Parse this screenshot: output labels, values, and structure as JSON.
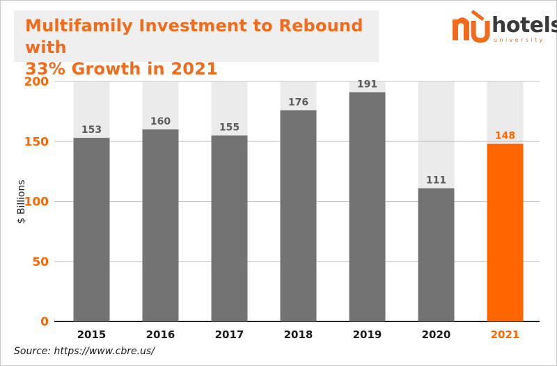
{
  "title": {
    "line1": "Multifamily Investment to Rebound with",
    "line2": "33% Growth in 2021"
  },
  "logo": {
    "word": "hotels",
    "sub": "university"
  },
  "source": "Source: https://www.cbre.us/",
  "colors": {
    "accent": "#FF6600",
    "bar": "#737373",
    "background_column": "#EBEBEB",
    "axis_label": "#FF6600"
  },
  "chart_data": {
    "type": "bar",
    "categories": [
      "2015",
      "2016",
      "2017",
      "2018",
      "2019",
      "2020",
      "2021"
    ],
    "values": [
      153,
      160,
      155,
      176,
      191,
      111,
      148
    ],
    "highlight": "2021",
    "ylabel": "$ Billions",
    "xlabel": "",
    "ylim": [
      0,
      200
    ],
    "yticks": [
      0,
      50,
      100,
      150,
      200
    ],
    "grid": true,
    "data_labels": true
  }
}
